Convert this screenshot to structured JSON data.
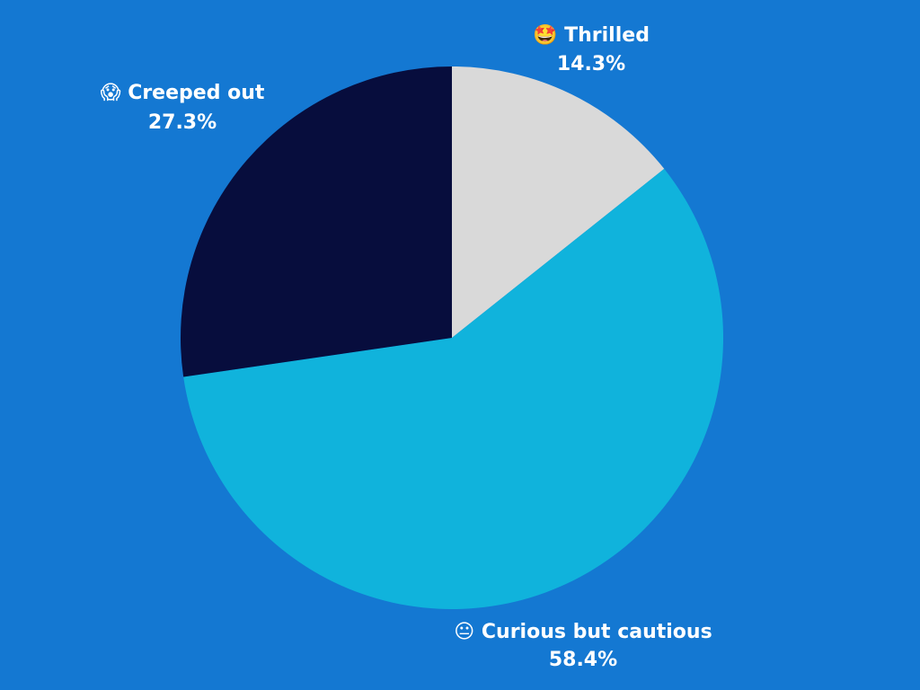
{
  "background_color": "#1478d2",
  "chart_data": {
    "type": "pie",
    "title": "",
    "legend": "none",
    "slices": [
      {
        "label": "Thrilled",
        "icon": "star-struck-emoji-icon",
        "glyph": "🤩",
        "value": 14.3,
        "value_label": "14.3%",
        "color": "#d9d9d9"
      },
      {
        "label": "Curious but cautious",
        "icon": "neutral-face-emoji-icon",
        "glyph": "😐",
        "value": 58.4,
        "value_label": "58.4%",
        "color": "#10b3dc"
      },
      {
        "label": "Creeped out",
        "icon": "screaming-face-emoji-icon",
        "glyph": "😱",
        "value": 27.3,
        "value_label": "27.3%",
        "color": "#070d3d"
      }
    ]
  }
}
